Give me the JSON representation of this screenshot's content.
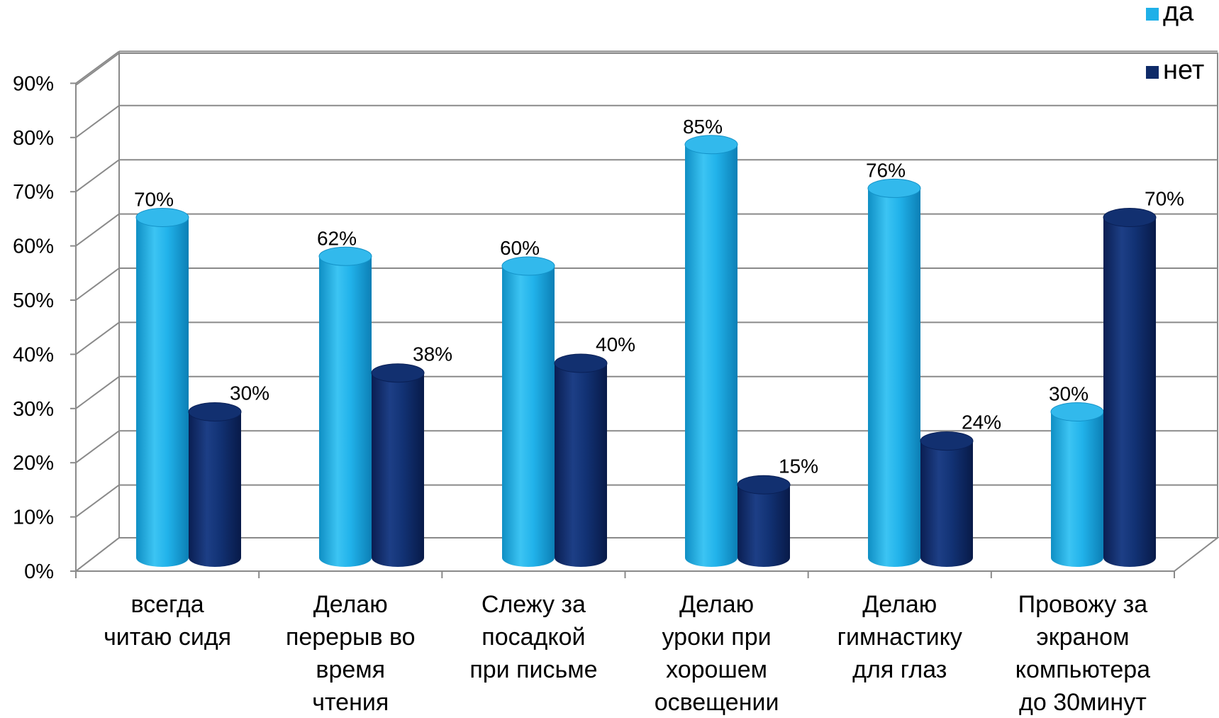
{
  "chart_data": {
    "type": "bar",
    "style": "3d-cylinder",
    "categories": [
      [
        "всегда",
        "читаю сидя"
      ],
      [
        "Делаю",
        "перерыв во",
        "время",
        "чтения"
      ],
      [
        "Слежу за",
        "посадкой",
        "при письме"
      ],
      [
        "Делаю",
        "уроки при",
        "хорошем",
        "освещении"
      ],
      [
        "Делаю",
        "гимнастику",
        "для глаз"
      ],
      [
        "Провожу за",
        "экраном",
        "компьютера",
        "до 30минут"
      ]
    ],
    "series": [
      {
        "name": "да",
        "color": "#1fb0e8",
        "values": [
          70,
          62,
          60,
          85,
          76,
          30
        ],
        "labels": [
          "70%",
          "62%",
          "60%",
          "85%",
          "76%",
          "30%"
        ]
      },
      {
        "name": "нет",
        "color": "#0e2a68",
        "values": [
          30,
          38,
          40,
          15,
          24,
          70
        ],
        "labels": [
          "30%",
          "38%",
          "40%",
          "15%",
          "24%",
          "70%"
        ]
      }
    ],
    "y_ticks": [
      "0%",
      "10%",
      "20%",
      "30%",
      "40%",
      "50%",
      "60%",
      "70%",
      "80%",
      "90%"
    ],
    "ylim": [
      0,
      90
    ],
    "grid": true,
    "legend": "top-right"
  }
}
